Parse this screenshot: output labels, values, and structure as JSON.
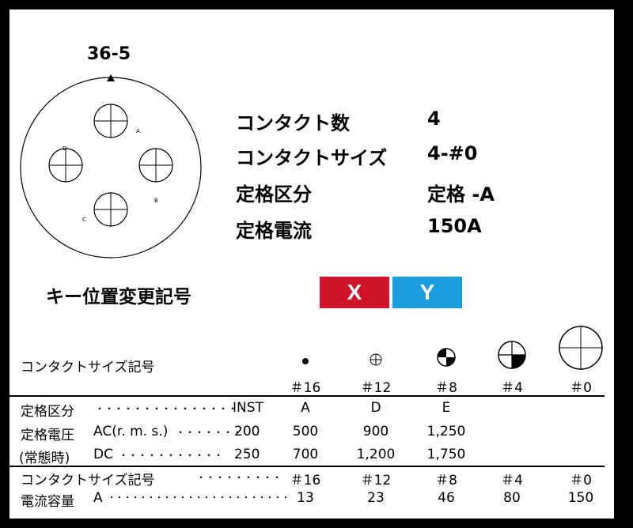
{
  "connector": {
    "title": "36-5",
    "contact_letters": [
      "A",
      "B",
      "C",
      "D"
    ]
  },
  "specs": [
    {
      "label": "コンタクト数",
      "value": "4"
    },
    {
      "label": "コンタクトサイズ",
      "value": "4-#0"
    },
    {
      "label": "定格区分",
      "value": "定格 -A"
    },
    {
      "label": "定格電流",
      "value": "150A"
    }
  ],
  "key_position": {
    "label": "キー位置変更記号",
    "keys": [
      {
        "label": "X",
        "color": "#d0142c"
      },
      {
        "label": "Y",
        "color": "#1b9ee0"
      }
    ]
  },
  "size_table": {
    "title": "コンタクトサイズ記号",
    "columns": [
      "＃16",
      "＃12",
      "＃8",
      "＃4",
      "＃0"
    ],
    "rows": [
      {
        "label": "定格区分",
        "leader": "・・・・・・・・・・・・・・・・",
        "ref": "INST",
        "values": [
          "A",
          "D",
          "E",
          "",
          ""
        ]
      },
      {
        "label": "定格電圧",
        "sub": "AC(r. m. s.)",
        "leader": "・・・・・・・",
        "ref": "200",
        "values": [
          "500",
          "900",
          "1,250",
          "",
          ""
        ]
      },
      {
        "label": "(常態時)",
        "sub": "DC",
        "leader": "・・・・・・・・・・・",
        "ref": "250",
        "values": [
          "700",
          "1,200",
          "1,750",
          "",
          ""
        ]
      },
      {
        "label": "コンタクトサイズ記号",
        "leader": "・・・・・・・・・",
        "values": [
          "＃16",
          "＃12",
          "＃8",
          "＃4",
          "＃0"
        ]
      },
      {
        "label": "電流容量",
        "sub": "A",
        "leader": "・・・・・・・・・・・・・・・・・・・・・・・",
        "values": [
          "13",
          "23",
          "46",
          "80",
          "150"
        ]
      }
    ]
  }
}
